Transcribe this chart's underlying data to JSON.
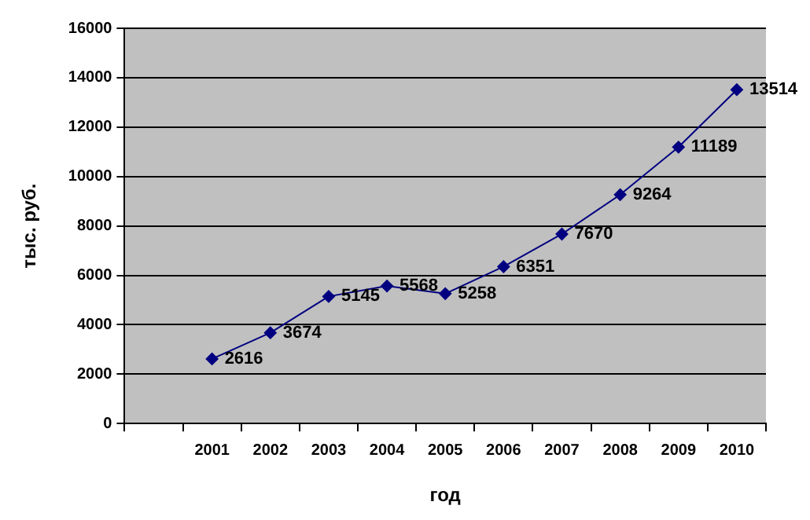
{
  "chart_data": {
    "type": "line",
    "xlabel": "год",
    "ylabel": "тыс. руб.",
    "categories": [
      null,
      "2001",
      "2002",
      "2003",
      "2004",
      "2005",
      "2006",
      "2007",
      "2008",
      "2009",
      "2010"
    ],
    "series": [
      {
        "color": "#000080",
        "values": [
          null,
          2616,
          3674,
          5145,
          5568,
          5258,
          6351,
          7670,
          9264,
          11189,
          13514
        ]
      }
    ],
    "ylim": [
      0,
      16000
    ],
    "yticks": [
      0,
      2000,
      4000,
      6000,
      8000,
      10000,
      12000,
      14000,
      16000
    ],
    "grid": "y",
    "legend": false,
    "marker": "diamond",
    "line_style": "solid",
    "data_labels": true
  }
}
